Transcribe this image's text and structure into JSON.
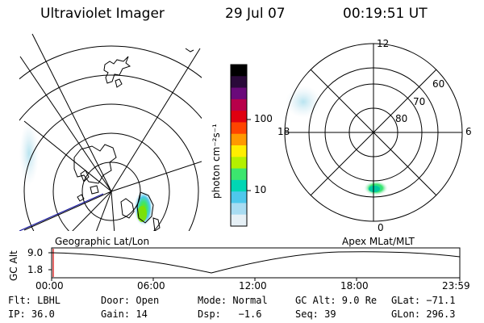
{
  "header": {
    "title": "Ultraviolet Imager",
    "date": "29 Jul 07",
    "time": "00:19:51 UT"
  },
  "colorbar": {
    "unit_label": "photon cm⁻²s⁻¹",
    "ticks": [
      "100",
      "10"
    ],
    "scale": "log",
    "colors": [
      "#000000",
      "#2a0a3a",
      "#6a0a7a",
      "#b8004a",
      "#e00010",
      "#ff4400",
      "#ff9900",
      "#ffee00",
      "#b4f000",
      "#3ce66e",
      "#00d6b4",
      "#4ec8ec",
      "#a8dcf2",
      "#e6f0f6"
    ]
  },
  "left_map": {
    "label": "Geographic Lat/Lon",
    "colors": {
      "grid": "#000000",
      "track": "#1a1aa0",
      "coast": "#000000"
    }
  },
  "right_map": {
    "label": "Apex MLat/MLT",
    "mlt_labels": {
      "top": "12",
      "left": "18",
      "right": "6",
      "bottom": "0"
    },
    "lat_labels": [
      "60",
      "70",
      "80"
    ]
  },
  "timeline": {
    "y_axis_label": "GC Alt",
    "y_ticks": [
      "9.0",
      "1.8"
    ],
    "x_ticks": [
      "00:00",
      "06:00",
      "12:00",
      "18:00",
      "23:59"
    ],
    "cursor_color": "#d40000"
  },
  "info": {
    "row1": {
      "filter": "Flt: LBHL",
      "door": "Door: Open",
      "mode": "Mode: Normal",
      "gc_alt": "GC Alt: 9.0 Re",
      "glat": "GLat: −71.1"
    },
    "row2": {
      "ip": "IP: 36.0",
      "gain": "Gain: 14",
      "dsp": "Dsp:   −1.6",
      "seq": "Seq: 39",
      "glon": "GLon: 296.3"
    }
  }
}
